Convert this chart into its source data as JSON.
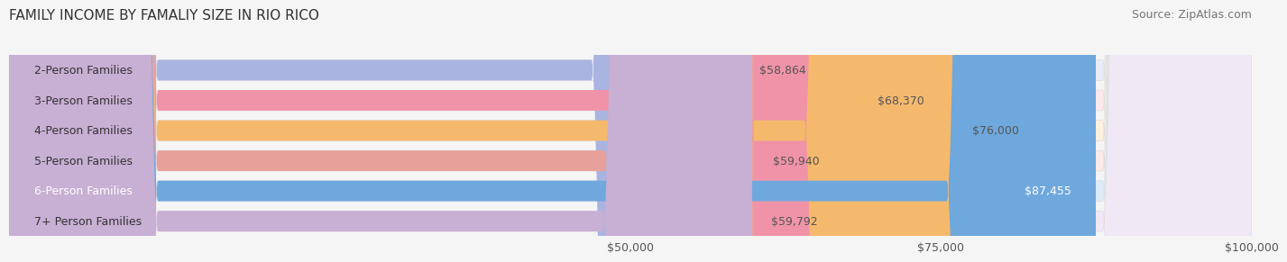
{
  "title": "FAMILY INCOME BY FAMALIY SIZE IN RIO RICO",
  "source": "Source: ZipAtlas.com",
  "categories": [
    "2-Person Families",
    "3-Person Families",
    "4-Person Families",
    "5-Person Families",
    "6-Person Families",
    "7+ Person Families"
  ],
  "values": [
    58864,
    68370,
    76000,
    59940,
    87455,
    59792
  ],
  "bar_colors": [
    "#aab4e0",
    "#f093a8",
    "#f5b96e",
    "#e8a09a",
    "#6fa8dc",
    "#c8afd4"
  ],
  "bar_bg_colors": [
    "#e8ecf8",
    "#fde8ed",
    "#fdf0e0",
    "#faeae8",
    "#ddeaf8",
    "#f0e8f5"
  ],
  "value_labels": [
    "$58,864",
    "$68,370",
    "$76,000",
    "$59,940",
    "$87,455",
    "$59,792"
  ],
  "label_inside": [
    false,
    false,
    false,
    false,
    true,
    false
  ],
  "xlim": [
    0,
    100000
  ],
  "xticks": [
    50000,
    75000,
    100000
  ],
  "xtick_labels": [
    "$50,000",
    "$75,000",
    "$100,000"
  ],
  "title_fontsize": 11,
  "source_fontsize": 9,
  "bar_label_fontsize": 9,
  "value_fontsize": 9,
  "background_color": "#f5f5f5",
  "bar_bg_alpha": 1.0,
  "bar_height": 0.68,
  "grid_color": "#cccccc"
}
